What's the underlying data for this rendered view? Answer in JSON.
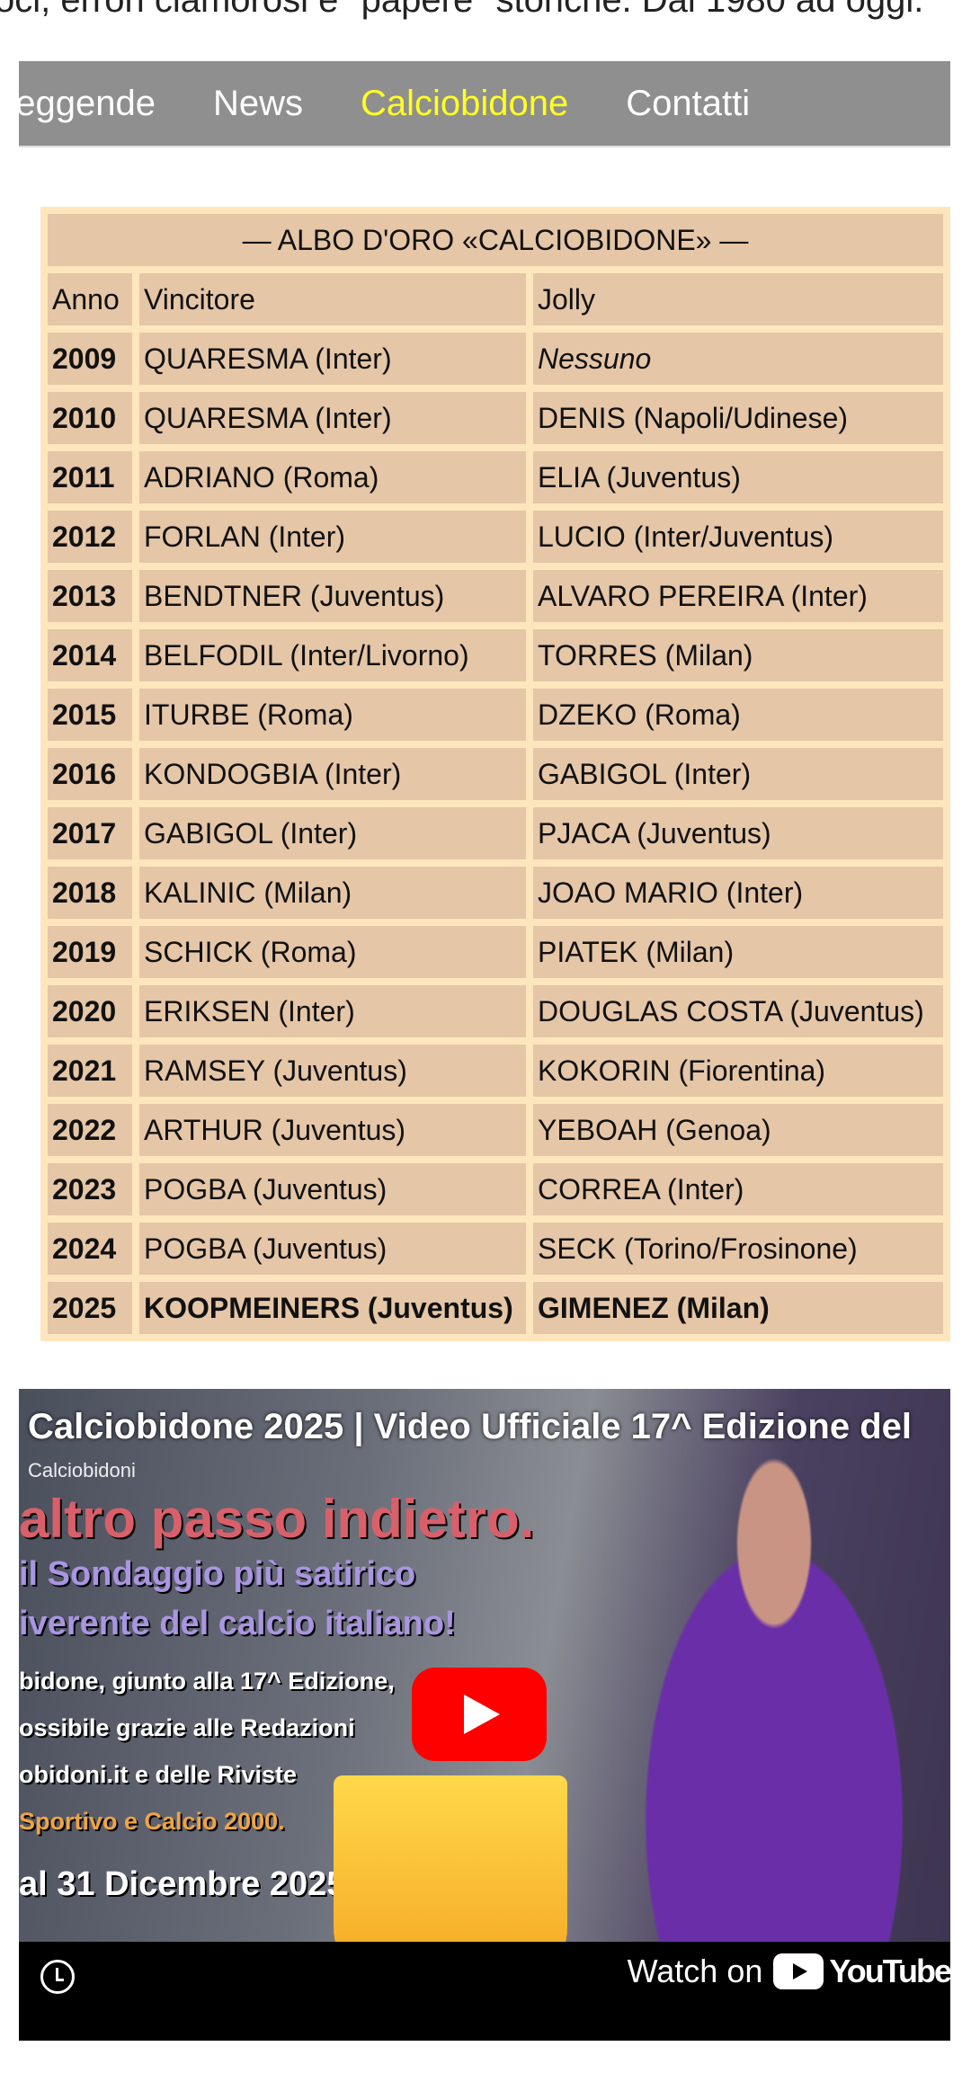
{
  "intro_text": "oci, errori clamorosi e \"papere\" storiche. Dal 1980 ad oggi.",
  "nav": {
    "items": [
      {
        "label": "Leggende",
        "active": false
      },
      {
        "label": "News",
        "active": false
      },
      {
        "label": "Calciobidone",
        "active": true
      },
      {
        "label": "Contatti",
        "active": false
      }
    ],
    "active_color": "#ffff22",
    "bg_color": "#8f8f8f"
  },
  "albo": {
    "title": "— ALBO D'ORO «CALCIOBIDONE» —",
    "headers": [
      "Anno",
      "Vincitore",
      "Jolly"
    ],
    "rows": [
      {
        "year": "2009",
        "winner": "QUARESMA (Inter)",
        "jolly": "Nessuno"
      },
      {
        "year": "2010",
        "winner": "QUARESMA (Inter)",
        "jolly": "DENIS (Napoli/Udinese)"
      },
      {
        "year": "2011",
        "winner": "ADRIANO (Roma)",
        "jolly": "ELIA (Juventus)"
      },
      {
        "year": "2012",
        "winner": "FORLAN (Inter)",
        "jolly": "LUCIO (Inter/Juventus)"
      },
      {
        "year": "2013",
        "winner": "BENDTNER (Juventus)",
        "jolly": "ALVARO PEREIRA (Inter)"
      },
      {
        "year": "2014",
        "winner": "BELFODIL (Inter/Livorno)",
        "jolly": "TORRES (Milan)"
      },
      {
        "year": "2015",
        "winner": "ITURBE (Roma)",
        "jolly": "DZEKO (Roma)"
      },
      {
        "year": "2016",
        "winner": "KONDOGBIA (Inter)",
        "jolly": "GABIGOL (Inter)"
      },
      {
        "year": "2017",
        "winner": "GABIGOL (Inter)",
        "jolly": "PJACA (Juventus)"
      },
      {
        "year": "2018",
        "winner": "KALINIC (Milan)",
        "jolly": "JOAO MARIO (Inter)"
      },
      {
        "year": "2019",
        "winner": "SCHICK (Roma)",
        "jolly": "PIATEK (Milan)"
      },
      {
        "year": "2020",
        "winner": "ERIKSEN (Inter)",
        "jolly": "DOUGLAS COSTA (Juventus)"
      },
      {
        "year": "2021",
        "winner": "RAMSEY (Juventus)",
        "jolly": "KOKORIN (Fiorentina)"
      },
      {
        "year": "2022",
        "winner": "ARTHUR (Juventus)",
        "jolly": "YEBOAH (Genoa)"
      },
      {
        "year": "2023",
        "winner": "POGBA (Juventus)",
        "jolly": "CORREA (Inter)"
      },
      {
        "year": "2024",
        "winner": "POGBA (Juventus)",
        "jolly": "SECK (Torino/Frosinone)"
      },
      {
        "year": "2025",
        "winner": "KOOPMEINERS (Juventus)",
        "jolly": "GIMENEZ (Milan)"
      }
    ]
  },
  "video": {
    "title": "Calciobidone 2025 | Video Ufficiale 17^ Edizione del",
    "channel": "Calciobidoni",
    "thumbnail_text": [
      "altro passo indietro.",
      "il Sondaggio più satirico",
      "iverente del calcio italiano!",
      "bidone, giunto alla 17^ Edizione,",
      "ossibile grazie alle Redazioni",
      "obidoni.it e delle Riviste",
      "Sportivo e Calcio 2000.",
      "al 31 Dicembre 2025."
    ],
    "watch_on": "Watch on",
    "youtube": "YouTube",
    "icons": {
      "play": "play-icon",
      "clock": "watch-later-icon",
      "youtube": "youtube-logo-icon"
    }
  }
}
